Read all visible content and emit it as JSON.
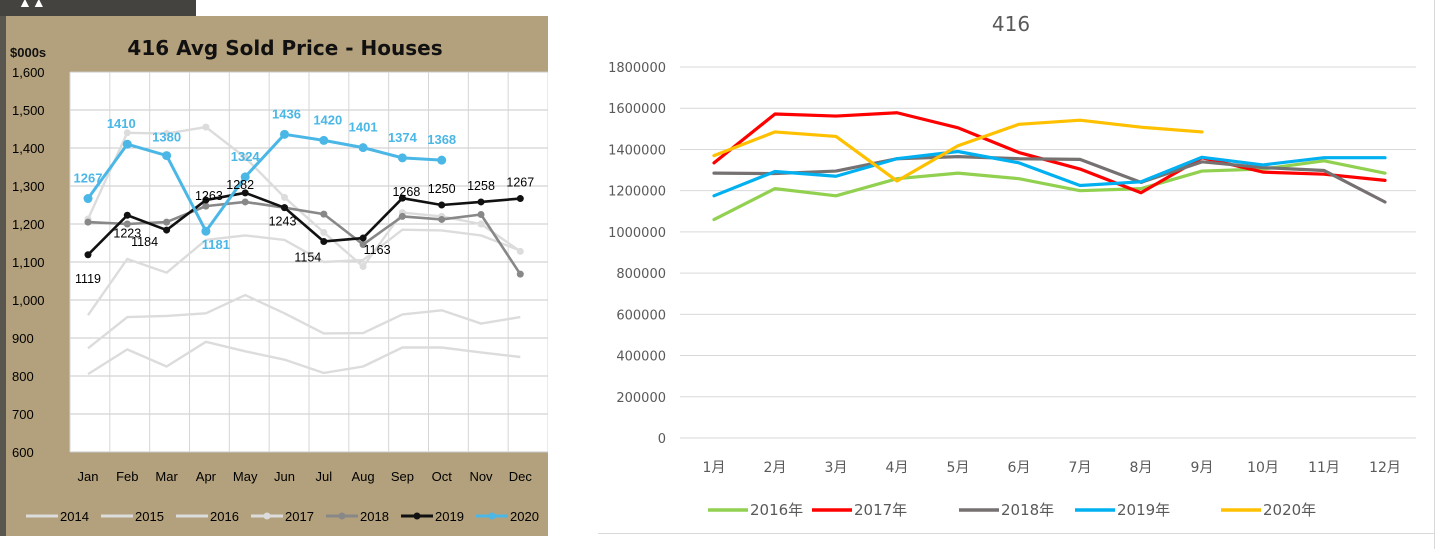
{
  "chart_data": [
    {
      "type": "line",
      "title": "416 Avg Sold Price - Houses",
      "ylabel": "$000s",
      "ylim": [
        600,
        1600
      ],
      "yticks": [
        "600",
        "700",
        "800",
        "900",
        "1,000",
        "1,100",
        "1,200",
        "1,300",
        "1,400",
        "1,500",
        "1,600"
      ],
      "categories": [
        "Jan",
        "Feb",
        "Mar",
        "Apr",
        "May",
        "Jun",
        "Jul",
        "Aug",
        "Sep",
        "Oct",
        "Nov",
        "Dec"
      ],
      "grid": true,
      "legend_position": "bottom",
      "series": [
        {
          "name": "2014",
          "color": "#dcdcdc",
          "marker": false,
          "values": [
            805,
            870,
            825,
            890,
            865,
            843,
            808,
            825,
            875,
            875,
            862,
            850
          ]
        },
        {
          "name": "2015",
          "color": "#dcdcdc",
          "marker": false,
          "values": [
            873,
            955,
            958,
            965,
            1013,
            965,
            912,
            913,
            962,
            973,
            938,
            955
          ]
        },
        {
          "name": "2016",
          "color": "#dcdcdc",
          "marker": false,
          "values": [
            960,
            1108,
            1072,
            1158,
            1170,
            1158,
            1100,
            1105,
            1185,
            1183,
            1170,
            1130
          ]
        },
        {
          "name": "2017",
          "color": "#dcdcdc",
          "marker": true,
          "values": [
            1213,
            1440,
            1438,
            1455,
            1375,
            1270,
            1178,
            1088,
            1230,
            1220,
            1200,
            1128
          ]
        },
        {
          "name": "2018",
          "color": "#888888",
          "marker": true,
          "values": [
            1205,
            1200,
            1205,
            1247,
            1258,
            1243,
            1226,
            1146,
            1220,
            1212,
            1225,
            1068
          ]
        },
        {
          "name": "2019",
          "color": "#111111",
          "marker": true,
          "values": [
            1119,
            1223,
            1184,
            1263,
            1282,
            1243,
            1154,
            1163,
            1268,
            1250,
            1258,
            1267
          ]
        },
        {
          "name": "2020",
          "color": "#4ab7e6",
          "marker": true,
          "values": [
            1267,
            1410,
            1380,
            1181,
            1324,
            1436,
            1420,
            1401,
            1374,
            1368,
            null,
            null
          ]
        }
      ],
      "labels_2020": [
        "1267",
        "1410",
        "1380",
        "1181",
        "1324",
        "1436",
        "1420",
        "1401",
        "1374",
        "1368"
      ],
      "labels_2019": [
        "1119",
        "1223",
        "1184",
        "1263",
        "1282",
        "1243",
        "1154",
        "1163",
        "1268",
        "1250",
        "1258",
        "1267"
      ]
    },
    {
      "type": "line",
      "title": "416",
      "ylim": [
        0,
        1800000
      ],
      "yticks": [
        "0",
        "200000",
        "400000",
        "600000",
        "800000",
        "1000000",
        "1200000",
        "1400000",
        "1600000",
        "1800000"
      ],
      "categories": [
        "1月",
        "2月",
        "3月",
        "4月",
        "5月",
        "6月",
        "7月",
        "8月",
        "9月",
        "10月",
        "11月",
        "12月"
      ],
      "grid": true,
      "legend_position": "bottom",
      "series": [
        {
          "name": "2016年",
          "color": "#92d050",
          "values": [
            1060000,
            1210000,
            1175000,
            1258000,
            1285000,
            1258000,
            1200000,
            1210000,
            1295000,
            1305000,
            1345000,
            1285000
          ]
        },
        {
          "name": "2017年",
          "color": "#ff0000",
          "values": [
            1335000,
            1572000,
            1562000,
            1578000,
            1505000,
            1385000,
            1305000,
            1190000,
            1360000,
            1290000,
            1280000,
            1250000
          ]
        },
        {
          "name": "2018年",
          "color": "#767171",
          "values": [
            1285000,
            1283000,
            1295000,
            1355000,
            1365000,
            1355000,
            1352000,
            1240000,
            1340000,
            1312000,
            1298000,
            1145000
          ]
        },
        {
          "name": "2019年",
          "color": "#00b0f0",
          "values": [
            1175000,
            1293000,
            1270000,
            1355000,
            1390000,
            1335000,
            1225000,
            1243000,
            1362000,
            1325000,
            1360000,
            1360000
          ]
        },
        {
          "name": "2020年",
          "color": "#ffc000",
          "values": [
            1370000,
            1485000,
            1463000,
            1247000,
            1418000,
            1522000,
            1542000,
            1508000,
            1485000,
            null,
            null,
            null
          ]
        }
      ]
    }
  ]
}
